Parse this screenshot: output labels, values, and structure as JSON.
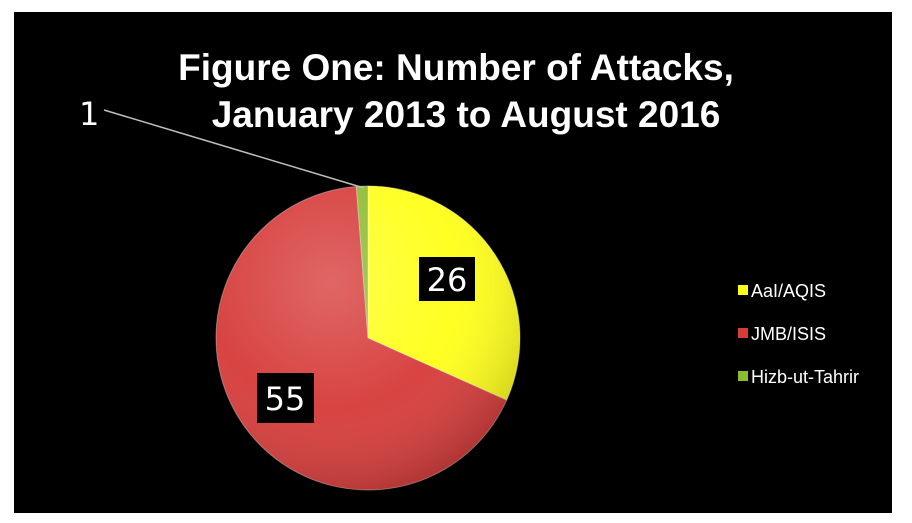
{
  "chart_data": {
    "type": "pie",
    "title_lines": [
      "Figure One: Number of Attacks,",
      "January 2013 to August 2016"
    ],
    "categories": [
      "AaI/AQIS",
      "JMB/ISIS",
      "Hizb-ut-Tahrir"
    ],
    "values": [
      26,
      55,
      1
    ],
    "data_labels": [
      "26",
      "55",
      "1"
    ],
    "colors": [
      "#ffff1a",
      "#d63c3a",
      "#8dbb30"
    ],
    "legend_placement": "right",
    "background": "#000000"
  }
}
